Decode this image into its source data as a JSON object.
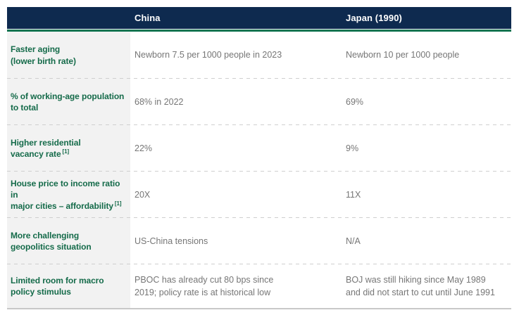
{
  "colors": {
    "header_bg": "#0e2a4f",
    "accent_green": "#0c7450",
    "label_green": "#156b4a",
    "label_bg": "#f2f2f2",
    "value_gray": "#767676"
  },
  "table": {
    "header": {
      "china": "China",
      "japan": "Japan (1990)"
    },
    "rows": [
      {
        "label": "Faster aging\n(lower birth rate)",
        "china": "Newborn 7.5 per 1000 people in 2023",
        "japan": "Newborn 10 per 1000 people"
      },
      {
        "label": "% of working-age population\nto total",
        "china": "68% in 2022",
        "japan": "69%"
      },
      {
        "label": "Higher residential\nvacancy rate",
        "label_sup": "[1]",
        "china": "22%",
        "japan": "9%"
      },
      {
        "label": "House price to income ratio in\nmajor cities – affordability",
        "label_sup": "[1]",
        "china": "20X",
        "japan": "11X"
      },
      {
        "label": "More challenging\ngeopolitics situation",
        "china": "US-China tensions",
        "japan": "N/A"
      },
      {
        "label": "Limited room for macro\npolicy stimulus",
        "china": "PBOC has already cut 80 bps since\n2019; policy rate is at historical low",
        "japan": "BOJ was still hiking since May 1989\nand did not start to cut until June 1991"
      }
    ]
  }
}
